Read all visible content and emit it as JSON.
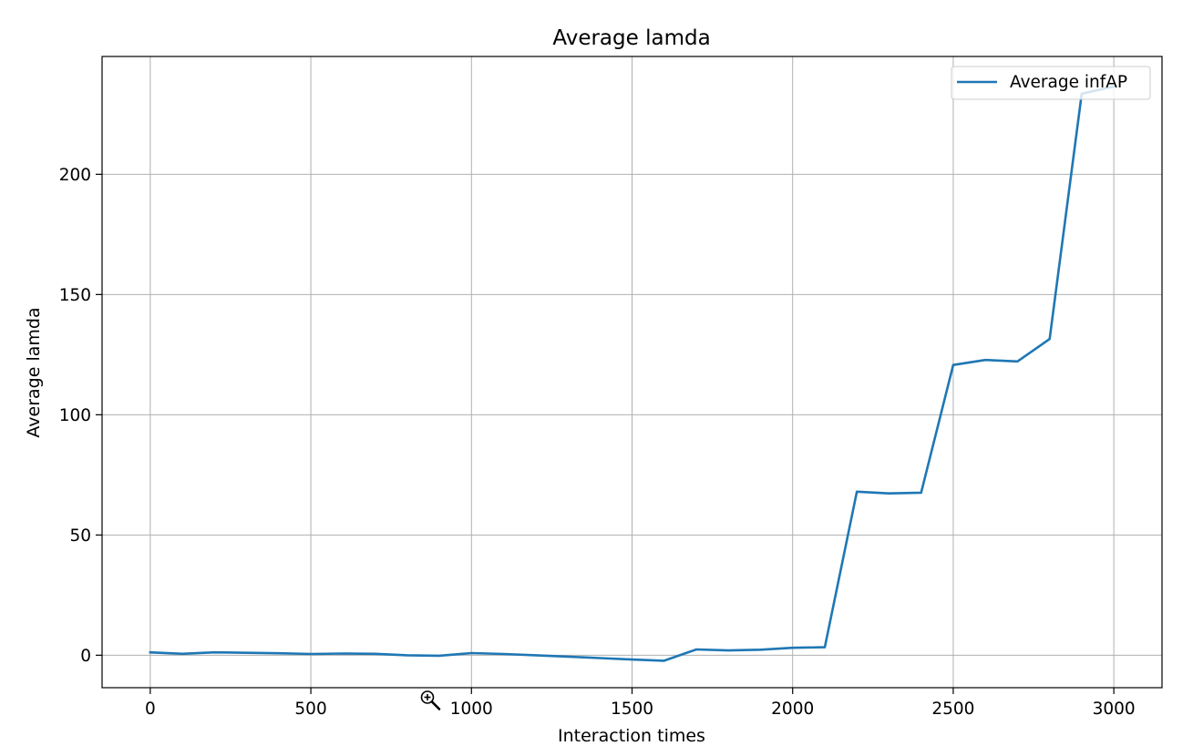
{
  "chart_data": {
    "type": "line",
    "title": "Average lamda",
    "xlabel": "Interaction times",
    "ylabel": "Average lamda",
    "xlim": [
      -150,
      3150
    ],
    "ylim": [
      -13.5,
      249
    ],
    "x_ticks": [
      0,
      500,
      1000,
      1500,
      2000,
      2500,
      3000
    ],
    "y_ticks": [
      0,
      50,
      100,
      150,
      200
    ],
    "grid": true,
    "legend": {
      "position": "top-right"
    },
    "series": [
      {
        "name": "Average infAP",
        "color": "#1f77b4",
        "x": [
          0,
          100,
          200,
          300,
          400,
          500,
          600,
          700,
          800,
          900,
          1000,
          1100,
          1200,
          1300,
          1400,
          1500,
          1600,
          1700,
          1800,
          1900,
          2000,
          2100,
          2200,
          2300,
          2400,
          2500,
          2600,
          2700,
          2800,
          2900,
          3000
        ],
        "y": [
          1.2,
          0.6,
          1.2,
          1.0,
          0.8,
          0.5,
          0.7,
          0.6,
          0.0,
          -0.2,
          0.9,
          0.5,
          0.0,
          -0.6,
          -1.2,
          -1.8,
          -2.3,
          2.4,
          2.0,
          2.3,
          3.1,
          3.3,
          68.0,
          67.3,
          67.6,
          120.7,
          122.8,
          122.2,
          131.5,
          233.5,
          236.5
        ]
      }
    ]
  },
  "cursor": {
    "icon": "zoom-cursor-icon"
  }
}
